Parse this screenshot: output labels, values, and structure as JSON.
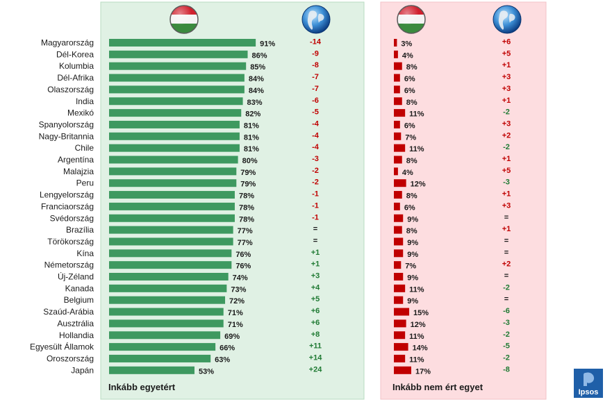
{
  "chart_data": [
    {
      "type": "bar",
      "orientation": "horizontal",
      "panel": "Inkább egyetért",
      "footer_label": "Inkább egyetért",
      "value_unit": "%",
      "column_icons": [
        "hungary-flag",
        "globe"
      ],
      "categories": [
        "Magyarország",
        "Dél-Korea",
        "Kolumbia",
        "Dél-Afrika",
        "Olaszország",
        "India",
        "Mexikó",
        "Spanyolország",
        "Nagy-Britannia",
        "Chile",
        "Argentína",
        "Malajzia",
        "Peru",
        "Lengyelország",
        "Franciaország",
        "Svédország",
        "Brazília",
        "Törökország",
        "Kína",
        "Németország",
        "Új-Zéland",
        "Kanada",
        "Belgium",
        "Szaúd-Arábia",
        "Ausztrália",
        "Hollandia",
        "Egyesült Államok",
        "Oroszország",
        "Japán"
      ],
      "values": [
        91,
        86,
        85,
        84,
        84,
        83,
        82,
        81,
        81,
        81,
        80,
        79,
        79,
        78,
        78,
        78,
        77,
        77,
        76,
        76,
        74,
        73,
        72,
        71,
        71,
        69,
        66,
        63,
        53
      ],
      "value_labels": [
        "91%",
        "86%",
        "85%",
        "84%",
        "84%",
        "83%",
        "82%",
        "81%",
        "81%",
        "81%",
        "80%",
        "79%",
        "79%",
        "78%",
        "78%",
        "78%",
        "77%",
        "77%",
        "76%",
        "76%",
        "74%",
        "73%",
        "72%",
        "71%",
        "71%",
        "69%",
        "66%",
        "63%",
        "53%"
      ],
      "comparison_labels": [
        "-14",
        "-9",
        "-8",
        "-7",
        "-7",
        "-6",
        "-5",
        "-4",
        "-4",
        "-4",
        "-3",
        "-2",
        "-2",
        "-1",
        "-1",
        "-1",
        "=",
        "=",
        "+1",
        "+1",
        "+3",
        "+4",
        "+5",
        "+6",
        "+6",
        "+8",
        "+11",
        "+14",
        "+24"
      ],
      "xlim": [
        0,
        100
      ],
      "colors": {
        "bar": "#3e9960",
        "panel_bg": "#e0f1e4",
        "panel_border": "#b8dcc0",
        "negative": "#c00000",
        "positive": "#1f7a33",
        "neutral": "#1a1a1a"
      }
    },
    {
      "type": "bar",
      "orientation": "horizontal",
      "panel": "Inkább nem ért egyet",
      "footer_label": "Inkább nem ért egyet",
      "value_unit": "%",
      "column_icons": [
        "hungary-flag",
        "globe"
      ],
      "categories": [
        "Magyarország",
        "Dél-Korea",
        "Kolumbia",
        "Dél-Afrika",
        "Olaszország",
        "India",
        "Mexikó",
        "Spanyolország",
        "Nagy-Britannia",
        "Chile",
        "Argentína",
        "Malajzia",
        "Peru",
        "Lengyelország",
        "Franciaország",
        "Svédország",
        "Brazília",
        "Törökország",
        "Kína",
        "Németország",
        "Új-Zéland",
        "Kanada",
        "Belgium",
        "Szaúd-Arábia",
        "Ausztrália",
        "Hollandia",
        "Egyesült Államok",
        "Oroszország",
        "Japán"
      ],
      "values": [
        3,
        4,
        8,
        6,
        6,
        8,
        11,
        6,
        7,
        11,
        8,
        4,
        12,
        8,
        6,
        9,
        8,
        9,
        9,
        7,
        9,
        11,
        9,
        15,
        12,
        11,
        14,
        11,
        17
      ],
      "value_labels": [
        "3%",
        "4%",
        "8%",
        "6%",
        "6%",
        "8%",
        "11%",
        "6%",
        "7%",
        "11%",
        "8%",
        "4%",
        "12%",
        "8%",
        "6%",
        "9%",
        "8%",
        "9%",
        "9%",
        "7%",
        "9%",
        "11%",
        "9%",
        "15%",
        "12%",
        "11%",
        "14%",
        "11%",
        "17%"
      ],
      "comparison_labels": [
        "+6",
        "+5",
        "+1",
        "+3",
        "+3",
        "+1",
        "-2",
        "+3",
        "+2",
        "-2",
        "+1",
        "+5",
        "-3",
        "+1",
        "+3",
        "=",
        "+1",
        "=",
        "=",
        "+2",
        "=",
        "-2",
        "=",
        "-6",
        "-3",
        "-2",
        "-5",
        "-2",
        "-8"
      ],
      "xlim": [
        0,
        100
      ],
      "colors": {
        "bar": "#c00000",
        "panel_bg": "#fddde0",
        "panel_border": "#f2c2c7",
        "negative": "#1f7a33",
        "positive": "#c00000",
        "neutral": "#1a1a1a"
      }
    }
  ],
  "brand": {
    "name": "Ipsos",
    "color": "#1f5fa8"
  }
}
